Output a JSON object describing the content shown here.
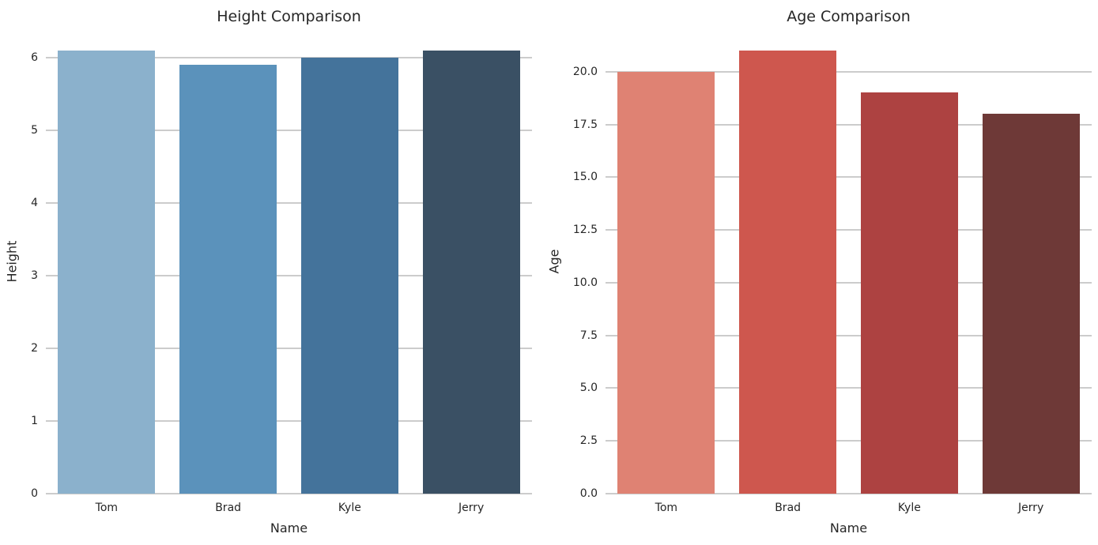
{
  "figure": {
    "background_color": "#ffffff",
    "text_color": "#262626",
    "grid_color": "#cccccc"
  },
  "chart_data": [
    {
      "type": "bar",
      "title": "Height Comparison",
      "xlabel": "Name",
      "ylabel": "Height",
      "categories": [
        "Tom",
        "Brad",
        "Kyle",
        "Jerry"
      ],
      "values": [
        6.1,
        5.9,
        6.0,
        6.1
      ],
      "bar_colors": [
        "#8bb1cc",
        "#5b92bb",
        "#44739b",
        "#3a5064"
      ],
      "ylim": [
        0,
        6.4
      ],
      "yticks": [
        0,
        1,
        2,
        3,
        4,
        5,
        6
      ],
      "ytick_labels": [
        "0",
        "1",
        "2",
        "3",
        "4",
        "5",
        "6"
      ],
      "grid": true,
      "legend": null
    },
    {
      "type": "bar",
      "title": "Age Comparison",
      "xlabel": "Name",
      "ylabel": "Age",
      "categories": [
        "Tom",
        "Brad",
        "Kyle",
        "Jerry"
      ],
      "values": [
        20,
        21,
        19,
        18
      ],
      "bar_colors": [
        "#df8273",
        "#ce574e",
        "#ad4241",
        "#6e3937"
      ],
      "ylim": [
        0,
        22.05
      ],
      "yticks": [
        0,
        2.5,
        5,
        7.5,
        10,
        12.5,
        15,
        17.5,
        20
      ],
      "ytick_labels": [
        "0.0",
        "2.5",
        "5.0",
        "7.5",
        "10.0",
        "12.5",
        "15.0",
        "17.5",
        "20.0"
      ],
      "grid": true,
      "legend": null
    }
  ]
}
